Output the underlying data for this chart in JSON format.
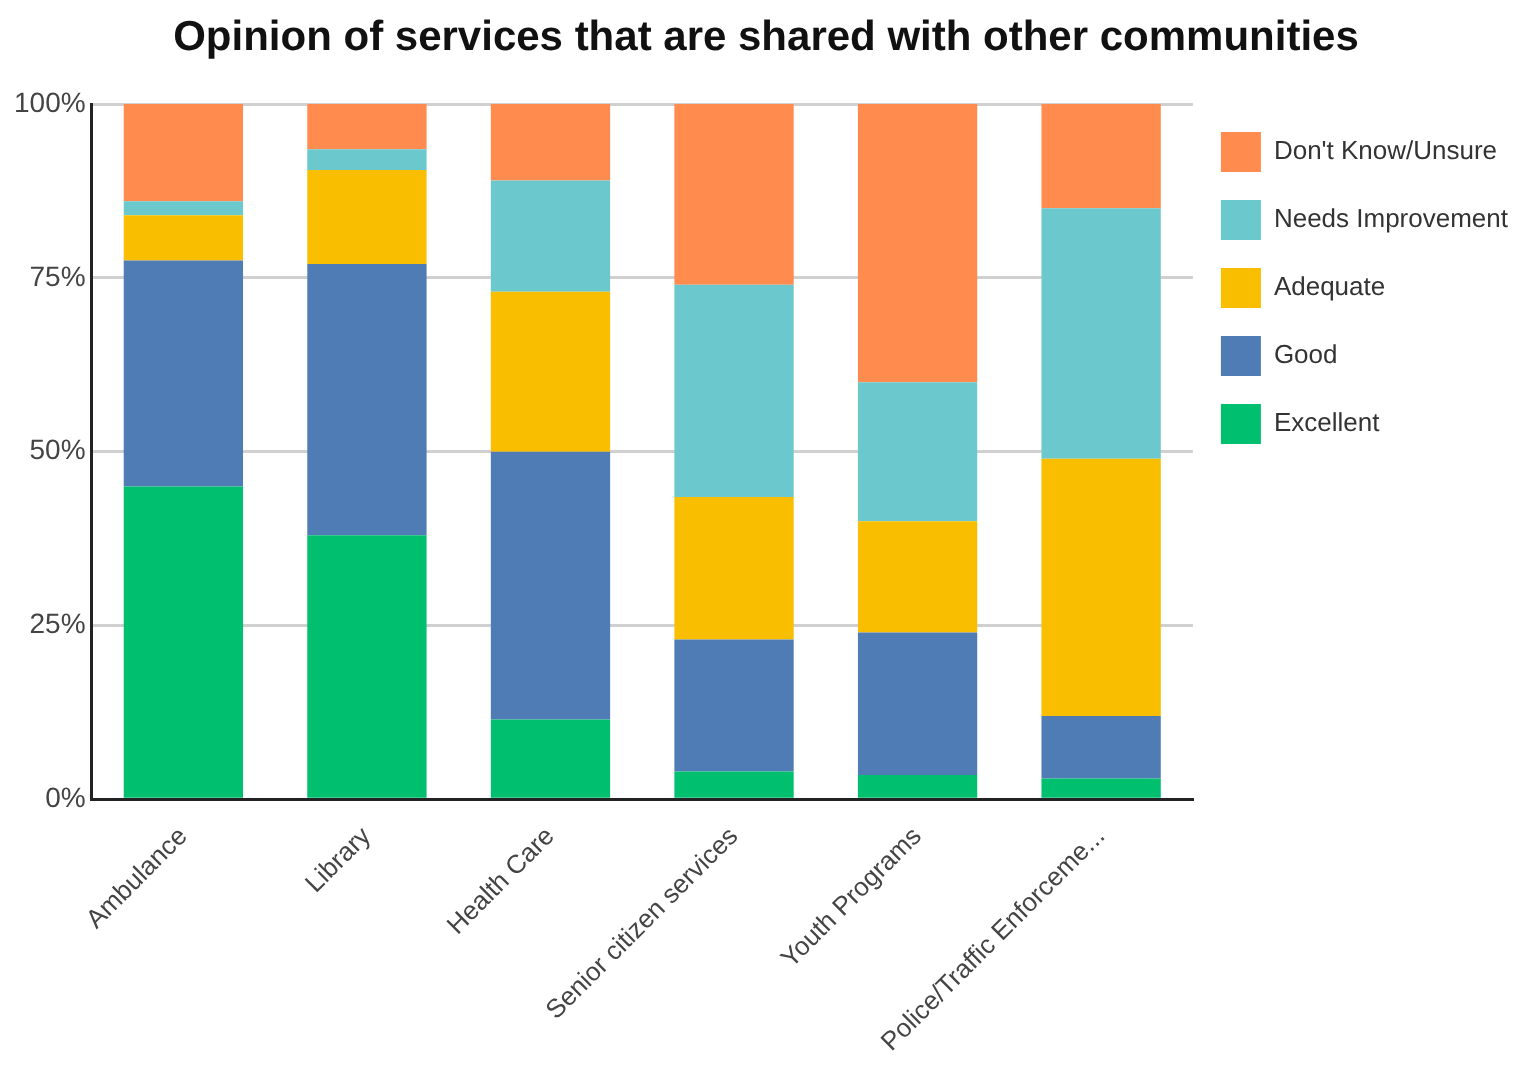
{
  "chart_data": {
    "type": "bar",
    "title": "Opinion of services that are shared with other communities",
    "categories": [
      "Ambulance",
      "Library",
      "Health Care",
      "Senior citizen services",
      "Youth Programs",
      "Police/Traffic Enforceme..."
    ],
    "stacked": true,
    "series": [
      {
        "name": "Excellent",
        "color": "#00bf6f",
        "values": [
          45,
          38,
          11.5,
          4,
          3.5,
          3
        ]
      },
      {
        "name": "Good",
        "color": "#507cb6",
        "values": [
          32.5,
          39,
          38.5,
          19,
          20.5,
          9
        ]
      },
      {
        "name": "Adequate",
        "color": "#f9be00",
        "values": [
          6.5,
          13.5,
          23,
          20.5,
          16,
          37
        ]
      },
      {
        "name": "Needs Improvement",
        "color": "#6bc8cd",
        "values": [
          2,
          3,
          16,
          30.5,
          20,
          36
        ]
      },
      {
        "name": "Don't Know/Unsure",
        "color": "#ff8b4f",
        "values": [
          14,
          6.5,
          11,
          26,
          40,
          15
        ]
      }
    ],
    "ylim": [
      0,
      100
    ],
    "yticks": [
      {
        "value": 0,
        "label": "0%"
      },
      {
        "value": 25,
        "label": "25%"
      },
      {
        "value": 50,
        "label": "50%"
      },
      {
        "value": 75,
        "label": "75%"
      },
      {
        "value": 100,
        "label": "100%"
      }
    ],
    "grid": "y",
    "legend": "top right"
  }
}
